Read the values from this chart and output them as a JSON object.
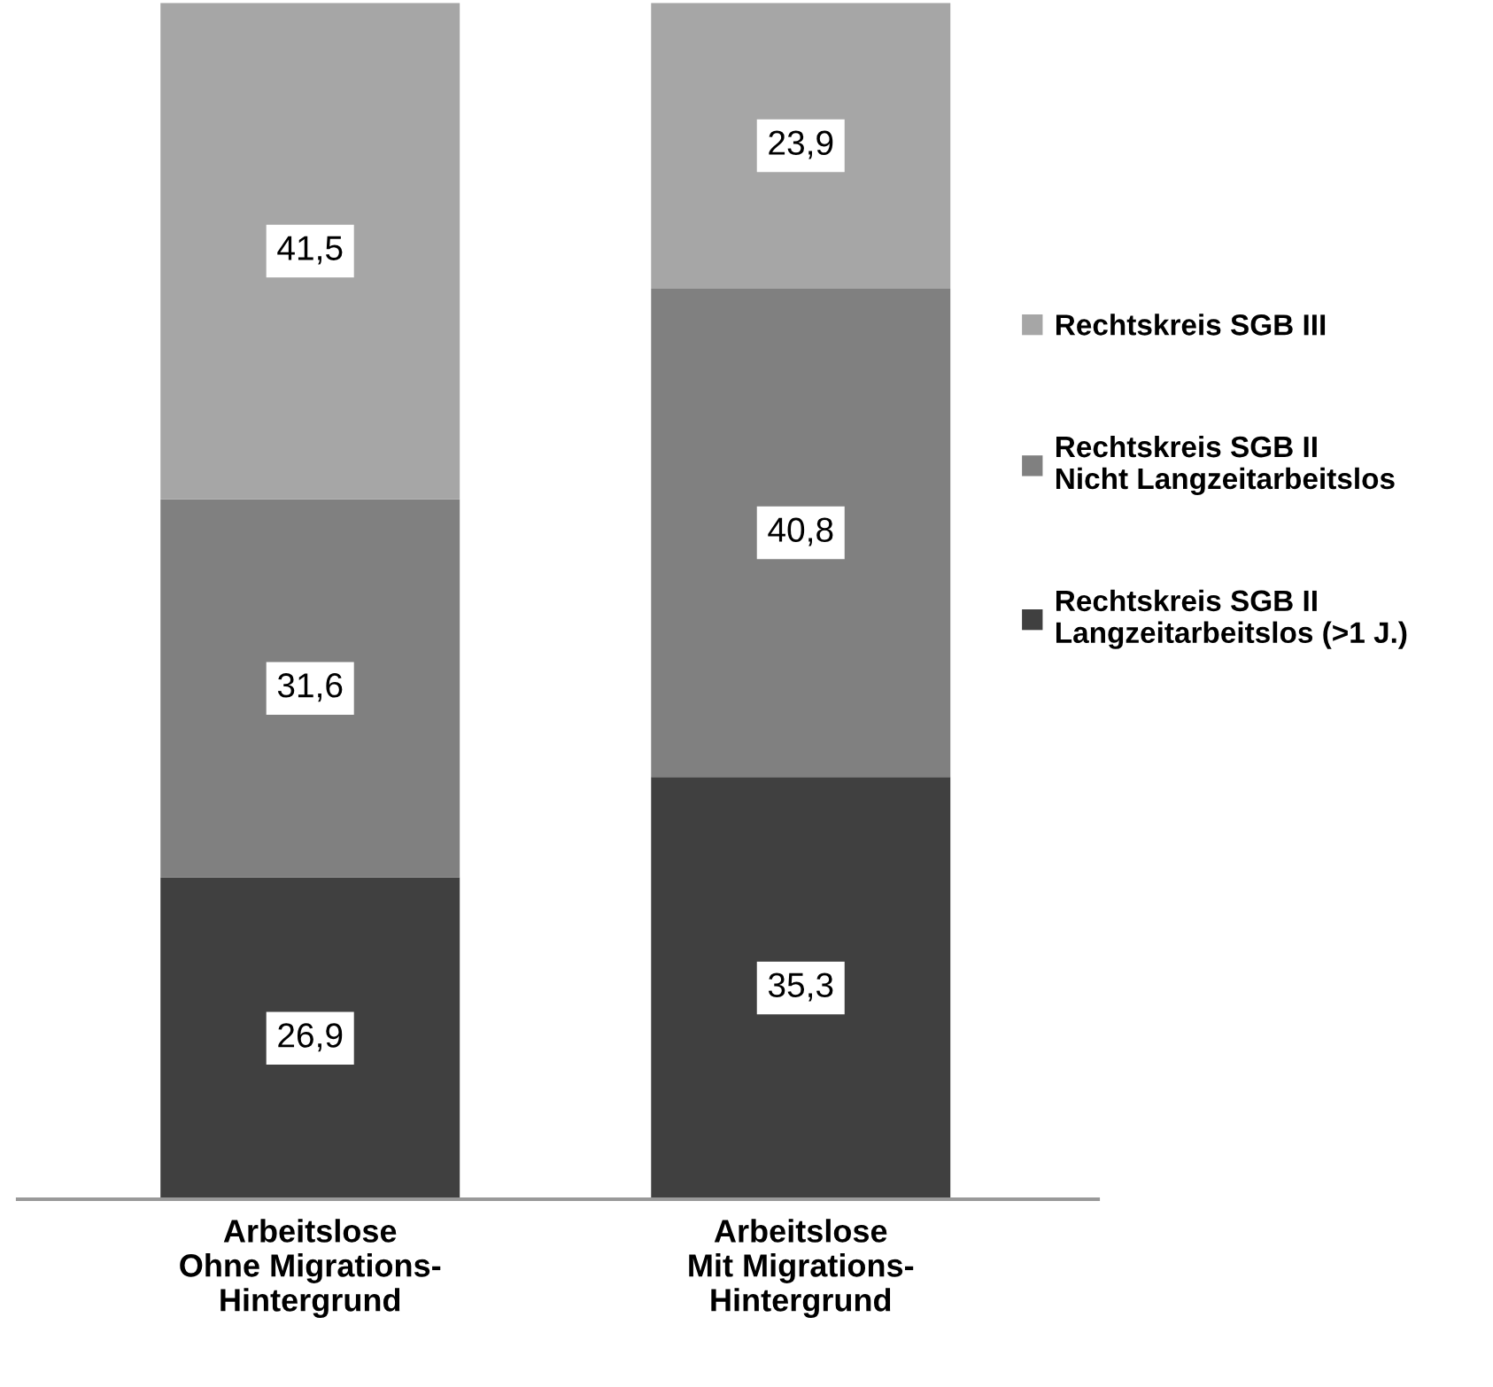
{
  "chart_data": {
    "type": "bar",
    "stacked": true,
    "categories": [
      "Arbeitslose\nOhne Migrations-\nHintergrund",
      "Arbeitslose\nMit Migrations-\nHintergrund"
    ],
    "series": [
      {
        "name": "Rechtskreis SGB II\nLangzeitarbeitslos (>1 J.)",
        "color": "#404040",
        "values": [
          26.9,
          35.3
        ],
        "value_labels": [
          "26,9",
          "35,3"
        ]
      },
      {
        "name": "Rechtskreis SGB II\nNicht Langzeitarbeitslos",
        "color": "#808080",
        "values": [
          31.6,
          40.8
        ],
        "value_labels": [
          "31,6",
          "40,8"
        ]
      },
      {
        "name": "Rechtskreis SGB III",
        "color": "#a6a6a6",
        "values": [
          41.5,
          23.9
        ],
        "value_labels": [
          "41,5",
          "23,9"
        ]
      }
    ],
    "ylim": [
      0,
      100
    ],
    "legend": "right",
    "grid": false
  }
}
